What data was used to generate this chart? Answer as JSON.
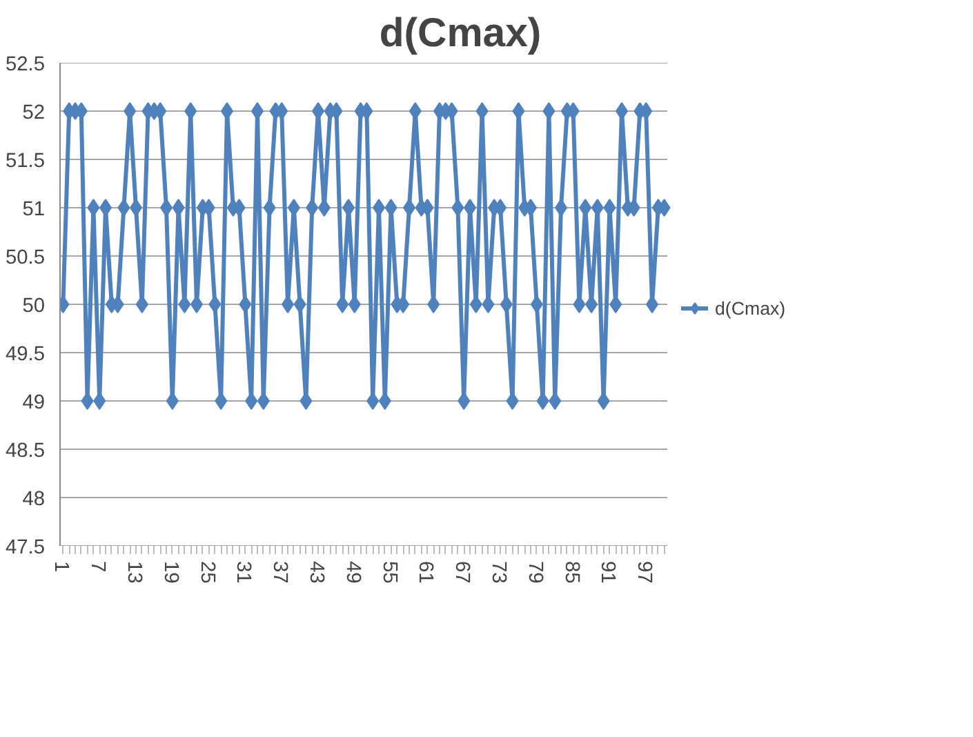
{
  "chart_data": {
    "type": "line",
    "title": "d(Cmax)",
    "categories": [
      "1",
      null,
      null,
      null,
      null,
      null,
      "7",
      null,
      null,
      null,
      null,
      null,
      "13",
      null,
      null,
      null,
      null,
      null,
      "19",
      null,
      null,
      null,
      null,
      null,
      "25",
      null,
      null,
      null,
      null,
      null,
      "31",
      null,
      null,
      null,
      null,
      null,
      "37",
      null,
      null,
      null,
      null,
      null,
      "43",
      null,
      null,
      null,
      null,
      null,
      "49",
      null,
      null,
      null,
      null,
      null,
      "55",
      null,
      null,
      null,
      null,
      null,
      "61",
      null,
      null,
      null,
      null,
      null,
      "67",
      null,
      null,
      null,
      null,
      null,
      "73",
      null,
      null,
      null,
      null,
      null,
      "79",
      null,
      null,
      null,
      null,
      null,
      "85",
      null,
      null,
      null,
      null,
      null,
      "91",
      null,
      null,
      null,
      null,
      null,
      "97",
      null,
      null,
      null
    ],
    "series": [
      {
        "name": "d(Cmax)",
        "color": "#4f81bd",
        "values": [
          50,
          52,
          52,
          52,
          49,
          51,
          49,
          51,
          50,
          50,
          51,
          52,
          51,
          50,
          52,
          52,
          52,
          51,
          49,
          51,
          50,
          52,
          50,
          51,
          51,
          50,
          49,
          52,
          51,
          51,
          50,
          49,
          52,
          49,
          51,
          52,
          52,
          50,
          51,
          50,
          49,
          51,
          52,
          51,
          52,
          52,
          50,
          51,
          50,
          52,
          52,
          49,
          51,
          49,
          51,
          50,
          50,
          51,
          52,
          51,
          51,
          50,
          52,
          52,
          52,
          51,
          49,
          51,
          50,
          52,
          50,
          51,
          51,
          50,
          49,
          52,
          51,
          51,
          50,
          49,
          52,
          49,
          51,
          52,
          52,
          50,
          51,
          50,
          51,
          49,
          51,
          50,
          52,
          51,
          51,
          52,
          52,
          50,
          51,
          51
        ]
      }
    ],
    "ylim": [
      47.5,
      52.5
    ],
    "yticks": [
      47.5,
      48,
      48.5,
      49,
      49.5,
      50,
      50.5,
      51,
      51.5,
      52,
      52.5
    ],
    "grid": "y",
    "legend": "right",
    "marker": "diamond",
    "line_style": "solid"
  }
}
